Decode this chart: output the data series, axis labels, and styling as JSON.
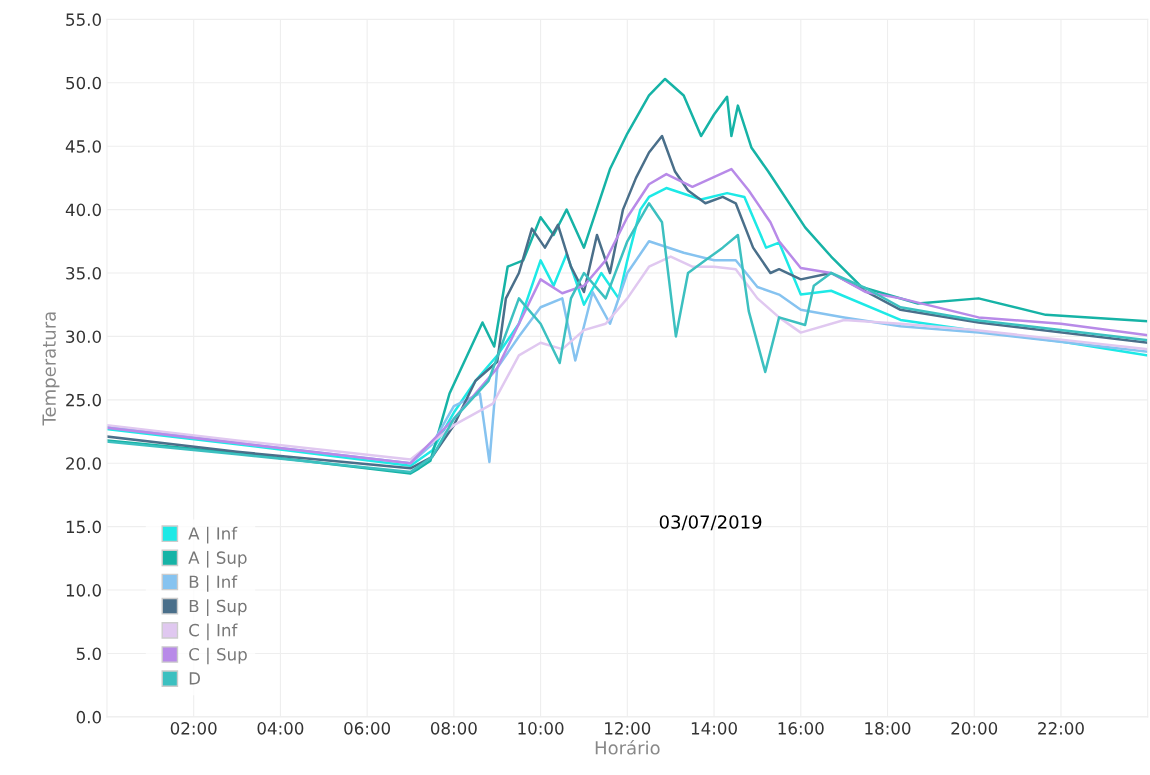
{
  "chart_data": {
    "type": "line",
    "xlabel": "Horário",
    "ylabel": "Temperatura",
    "xlim": [
      0,
      24
    ],
    "xticks": [
      {
        "value": 2,
        "label": "02:00"
      },
      {
        "value": 4,
        "label": "04:00"
      },
      {
        "value": 6,
        "label": "06:00"
      },
      {
        "value": 8,
        "label": "08:00"
      },
      {
        "value": 10,
        "label": "10:00"
      },
      {
        "value": 12,
        "label": "12:00"
      },
      {
        "value": 14,
        "label": "14:00"
      },
      {
        "value": 16,
        "label": "16:00"
      },
      {
        "value": 18,
        "label": "18:00"
      },
      {
        "value": 20,
        "label": "20:00"
      },
      {
        "value": 22,
        "label": "22:00"
      }
    ],
    "ylim": [
      0,
      55
    ],
    "yticks": [
      {
        "value": 0,
        "label": "0.0"
      },
      {
        "value": 5,
        "label": "5.0"
      },
      {
        "value": 10,
        "label": "10.0"
      },
      {
        "value": 15,
        "label": "15.0"
      },
      {
        "value": 20,
        "label": "20.0"
      },
      {
        "value": 25,
        "label": "25.0"
      },
      {
        "value": 30,
        "label": "30.0"
      },
      {
        "value": 35,
        "label": "35.0"
      },
      {
        "value": 40,
        "label": "40.0"
      },
      {
        "value": 45,
        "label": "45.0"
      },
      {
        "value": 50,
        "label": "50.0"
      },
      {
        "value": 55,
        "label": "55.0"
      }
    ],
    "grid": true,
    "legend": "bottom left",
    "marker": "none",
    "line_style": "solid",
    "annotations": [
      "03/07/2019"
    ],
    "series": [
      {
        "name": "A | Inf",
        "color": "#1de9e6",
        "x": [
          0,
          3,
          7,
          7.5,
          8,
          8.5,
          9,
          9.5,
          10,
          10.3,
          10.6,
          11,
          11.4,
          11.8,
          12,
          12.3,
          12.5,
          12.9,
          13.7,
          14.3,
          14.7,
          15.2,
          15.5,
          16,
          16.7,
          18.3,
          20.1,
          22,
          24
        ],
        "values": [
          22.7,
          21.5,
          19.8,
          21,
          24,
          26.5,
          28.5,
          31,
          36,
          34,
          36.5,
          32.5,
          35,
          33,
          36,
          40,
          41,
          41.7,
          40.8,
          41.3,
          41,
          37,
          37.4,
          33.3,
          33.6,
          31.3,
          30.4,
          29.6,
          28.5
        ]
      },
      {
        "name": "A | Sup",
        "color": "#16b3a6",
        "x": [
          0,
          3,
          7,
          7.2,
          7.46,
          7.9,
          8.66,
          8.93,
          9.24,
          9.6,
          10,
          10.3,
          10.6,
          11,
          11.6,
          12,
          12.5,
          12.87,
          13.3,
          13.7,
          14.0,
          14.3,
          14.4,
          14.55,
          14.86,
          15.25,
          16.1,
          16.7,
          17.4,
          18.7,
          20.1,
          21.65,
          24
        ],
        "values": [
          21.8,
          20.8,
          19.2,
          19.6,
          20.2,
          25.5,
          31.1,
          29.2,
          35.5,
          36,
          39.4,
          38,
          40,
          37,
          43.2,
          46,
          49,
          50.3,
          49,
          45.8,
          47.5,
          48.9,
          45.8,
          48.2,
          44.9,
          43,
          38.6,
          36.3,
          33.9,
          32.6,
          33,
          31.7,
          31.2
        ]
      },
      {
        "name": "B | Inf",
        "color": "#86c3f0",
        "x": [
          0,
          3,
          7,
          7.5,
          8,
          8.6,
          8.82,
          9,
          9.5,
          10,
          10.5,
          10.8,
          11.2,
          11.6,
          12,
          12.5,
          13.3,
          14,
          14.5,
          15,
          15.5,
          16,
          17,
          18.3,
          20.1,
          24
        ],
        "values": [
          22.9,
          21.6,
          20.0,
          21.5,
          24.5,
          25.5,
          20.1,
          27.5,
          30,
          32.3,
          33,
          28.1,
          33.5,
          31,
          35,
          37.5,
          36.6,
          36,
          36,
          33.9,
          33.3,
          32.1,
          31.5,
          30.8,
          30.3,
          28.8
        ]
      },
      {
        "name": "B | Sup",
        "color": "#4a6f8a",
        "x": [
          0,
          3,
          7,
          7.5,
          8,
          8.5,
          9,
          9.2,
          9.5,
          9.8,
          10.1,
          10.4,
          10.7,
          11,
          11.3,
          11.6,
          11.9,
          12.2,
          12.5,
          12.8,
          13.1,
          13.4,
          13.8,
          14.2,
          14.5,
          14.9,
          15.3,
          15.5,
          16,
          16.7,
          18.3,
          20.1,
          24
        ],
        "values": [
          22.1,
          20.9,
          19.6,
          20.5,
          23,
          26.5,
          28,
          33,
          35,
          38.5,
          37,
          38.8,
          35.5,
          33.5,
          38,
          35,
          40,
          42.5,
          44.5,
          45.8,
          43,
          41.5,
          40.5,
          41,
          40.5,
          37,
          35,
          35.3,
          34.5,
          35,
          32.1,
          31.1,
          29.5
        ]
      },
      {
        "name": "C | Inf",
        "color": "#e0c8f0",
        "x": [
          0,
          3,
          7,
          8,
          8.9,
          9.5,
          10,
          10.5,
          11,
          11.5,
          12,
          12.5,
          13,
          13.5,
          14,
          14.5,
          15,
          15.5,
          16,
          17,
          18.3,
          20,
          24
        ],
        "values": [
          23.0,
          21.8,
          20.3,
          23,
          24.7,
          28.5,
          29.5,
          29,
          30.5,
          31,
          33,
          35.5,
          36.3,
          35.5,
          35.5,
          35.3,
          33,
          31.5,
          30.3,
          31.3,
          31,
          30.5,
          29
        ]
      },
      {
        "name": "C | Sup",
        "color": "#b88ae8",
        "x": [
          0,
          3,
          7,
          8,
          9,
          10,
          10.5,
          11,
          11.5,
          12,
          12.5,
          12.9,
          13.5,
          14.4,
          14.8,
          15.3,
          15.5,
          16,
          16.7,
          17.5,
          18.3,
          20.1,
          22,
          24
        ],
        "values": [
          22.8,
          21.6,
          20.0,
          23.5,
          27.5,
          34.5,
          33.4,
          34,
          36,
          39.4,
          42,
          42.8,
          41.8,
          43.2,
          41.5,
          39,
          37.5,
          35.4,
          35,
          33.5,
          33,
          31.5,
          31,
          30.1
        ]
      },
      {
        "name": "D",
        "color": "#3cc0c0",
        "x": [
          0,
          3,
          7,
          7.5,
          8,
          8.8,
          9.5,
          10,
          10.44,
          10.7,
          11,
          11.5,
          12,
          12.5,
          12.8,
          13.12,
          13.4,
          13.8,
          14.2,
          14.55,
          14.8,
          15.18,
          15.5,
          16.1,
          16.3,
          16.7,
          17.5,
          18.3,
          20,
          24
        ],
        "values": [
          21.7,
          20.7,
          19.3,
          20.5,
          23.5,
          26.5,
          33,
          31,
          27.9,
          33,
          35,
          33,
          37.5,
          40.5,
          39,
          30.0,
          35,
          36,
          37,
          38,
          32,
          27.2,
          31.5,
          30.9,
          34,
          35,
          33.8,
          32.3,
          31.3,
          29.7
        ]
      }
    ]
  }
}
